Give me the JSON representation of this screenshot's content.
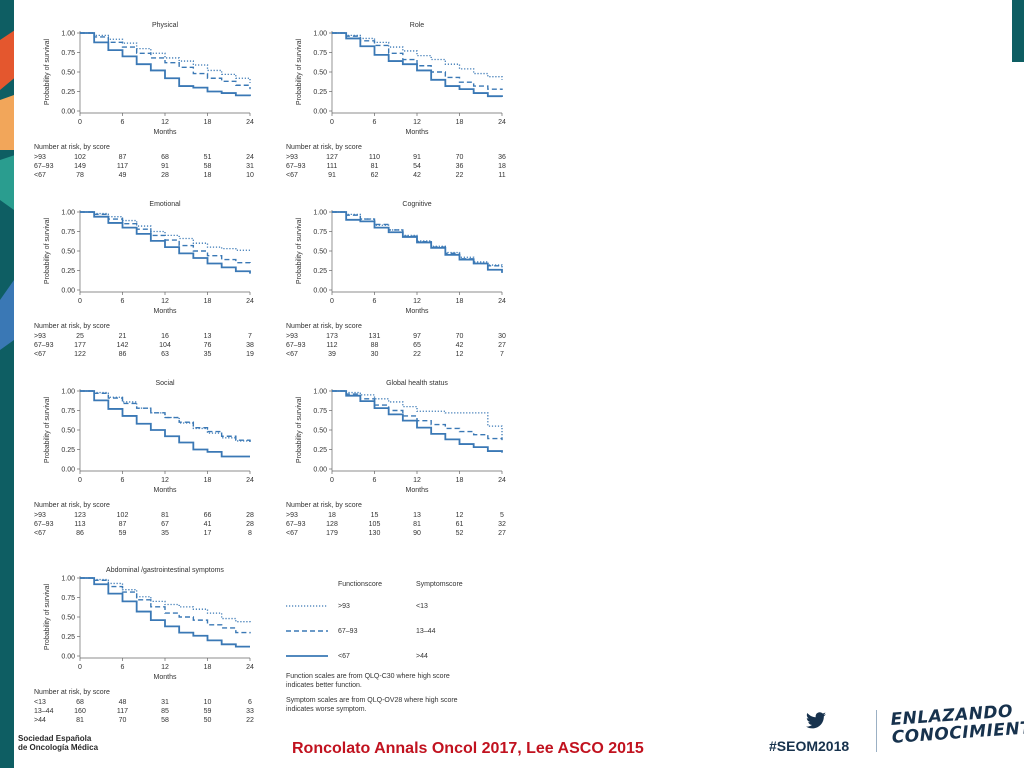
{
  "slide": {
    "citation": "Roncolato Annals Oncol 2017, Lee ASCO 2015",
    "hashtag": "#SEOM2018",
    "brand_line1": "ENLAZANDO",
    "brand_line2": "CONOCIMIENTO",
    "society_line1": "Sociedad Española",
    "society_line2": "de Oncología Médica",
    "colors": {
      "citation": "#c1121f",
      "brand": "#17324d",
      "curve": "#3a78b5",
      "accent_orange": "#e4572e",
      "accent_teal": "#2a9d8f"
    }
  },
  "common": {
    "xlabel": "Months",
    "ylabel": "Probability of survival",
    "risk_header": "Number at risk, by score",
    "x_ticks": [
      "0",
      "6",
      "12",
      "18",
      "24"
    ],
    "y_ticks": [
      "0.00",
      "0.25",
      "0.50",
      "0.75",
      "1.00"
    ]
  },
  "legend": {
    "col1_header": "Functionscore",
    "col2_header": "Symptomscore",
    "rows": [
      {
        "function": ">93",
        "symptom": "<13",
        "style": "dotted"
      },
      {
        "function": "67–93",
        "symptom": "13–44",
        "style": "dashed"
      },
      {
        "function": "<67",
        "symptom": ">44",
        "style": "solid"
      }
    ],
    "note1_line1": "Function scales are from QLQ-C30 where high score",
    "note1_line2": "indicates better function.",
    "note2_line1": "Symptom scales are from QLQ-OV28 where high score",
    "note2_line2": "indicates worse symptom."
  },
  "chart_data": [
    {
      "type": "line",
      "title": "Physical",
      "xlabel": "Months",
      "ylabel": "Probability of survival",
      "xlim": [
        0,
        24
      ],
      "ylim": [
        0,
        1
      ],
      "x": [
        0,
        2,
        4,
        6,
        8,
        10,
        12,
        14,
        16,
        18,
        20,
        22,
        24
      ],
      "series": [
        {
          "name": ">93",
          "values": [
            1.0,
            0.97,
            0.92,
            0.87,
            0.8,
            0.74,
            0.68,
            0.64,
            0.59,
            0.52,
            0.47,
            0.42,
            0.36
          ],
          "style": "dotted"
        },
        {
          "name": "67–93",
          "values": [
            1.0,
            0.95,
            0.88,
            0.82,
            0.74,
            0.68,
            0.62,
            0.56,
            0.48,
            0.42,
            0.38,
            0.33,
            0.28
          ],
          "style": "dashed"
        },
        {
          "name": "<67",
          "values": [
            1.0,
            0.88,
            0.78,
            0.7,
            0.6,
            0.52,
            0.42,
            0.32,
            0.3,
            0.25,
            0.23,
            0.2,
            0.19
          ],
          "style": "solid"
        }
      ],
      "risk": [
        {
          "label": ">93",
          "values": [
            "102",
            "87",
            "68",
            "51",
            "24"
          ]
        },
        {
          "label": "67–93",
          "values": [
            "149",
            "117",
            "91",
            "58",
            "31"
          ]
        },
        {
          "label": "<67",
          "values": [
            "78",
            "49",
            "28",
            "18",
            "10"
          ]
        }
      ]
    },
    {
      "type": "line",
      "title": "Role",
      "xlabel": "Months",
      "ylabel": "Probability of survival",
      "xlim": [
        0,
        24
      ],
      "ylim": [
        0,
        1
      ],
      "x": [
        0,
        2,
        4,
        6,
        8,
        10,
        12,
        14,
        16,
        18,
        20,
        22,
        24
      ],
      "series": [
        {
          "name": ">93",
          "values": [
            1.0,
            0.97,
            0.93,
            0.88,
            0.82,
            0.77,
            0.71,
            0.66,
            0.6,
            0.54,
            0.48,
            0.44,
            0.4
          ],
          "style": "dotted"
        },
        {
          "name": "67–93",
          "values": [
            1.0,
            0.96,
            0.9,
            0.84,
            0.74,
            0.66,
            0.58,
            0.5,
            0.43,
            0.37,
            0.32,
            0.28,
            0.27
          ],
          "style": "dashed"
        },
        {
          "name": "<67",
          "values": [
            1.0,
            0.93,
            0.83,
            0.72,
            0.64,
            0.6,
            0.52,
            0.4,
            0.32,
            0.28,
            0.23,
            0.19,
            0.18
          ],
          "style": "solid"
        }
      ],
      "risk": [
        {
          "label": ">93",
          "values": [
            "127",
            "110",
            "91",
            "70",
            "36"
          ]
        },
        {
          "label": "67–93",
          "values": [
            "111",
            "81",
            "54",
            "36",
            "18"
          ]
        },
        {
          "label": "<67",
          "values": [
            "91",
            "62",
            "42",
            "22",
            "11"
          ]
        }
      ]
    },
    {
      "type": "line",
      "title": "Emotional",
      "xlabel": "Months",
      "ylabel": "Probability of survival",
      "xlim": [
        0,
        24
      ],
      "ylim": [
        0,
        1
      ],
      "x": [
        0,
        2,
        4,
        6,
        8,
        10,
        12,
        14,
        16,
        18,
        20,
        22,
        24
      ],
      "series": [
        {
          "name": ">93",
          "values": [
            1.0,
            0.98,
            0.94,
            0.89,
            0.82,
            0.75,
            0.7,
            0.66,
            0.6,
            0.55,
            0.53,
            0.51,
            0.51
          ],
          "style": "dotted"
        },
        {
          "name": "67–93",
          "values": [
            1.0,
            0.97,
            0.91,
            0.85,
            0.78,
            0.7,
            0.64,
            0.57,
            0.5,
            0.44,
            0.39,
            0.35,
            0.32
          ],
          "style": "dashed"
        },
        {
          "name": "<67",
          "values": [
            1.0,
            0.94,
            0.86,
            0.8,
            0.72,
            0.63,
            0.55,
            0.47,
            0.41,
            0.34,
            0.29,
            0.24,
            0.21
          ],
          "style": "solid"
        }
      ],
      "risk": [
        {
          "label": ">93",
          "values": [
            "25",
            "21",
            "16",
            "13",
            "7"
          ]
        },
        {
          "label": "67–93",
          "values": [
            "177",
            "142",
            "104",
            "76",
            "38"
          ]
        },
        {
          "label": "<67",
          "values": [
            "122",
            "86",
            "63",
            "35",
            "19"
          ]
        }
      ]
    },
    {
      "type": "line",
      "title": "Cognitive",
      "xlabel": "Months",
      "ylabel": "Probability of survival",
      "xlim": [
        0,
        24
      ],
      "ylim": [
        0,
        1
      ],
      "x": [
        0,
        2,
        4,
        6,
        8,
        10,
        12,
        14,
        16,
        18,
        20,
        22,
        24
      ],
      "series": [
        {
          "name": ">93",
          "values": [
            1.0,
            0.97,
            0.91,
            0.83,
            0.77,
            0.7,
            0.63,
            0.56,
            0.48,
            0.42,
            0.36,
            0.32,
            0.3
          ],
          "style": "dotted"
        },
        {
          "name": "67–93",
          "values": [
            1.0,
            0.96,
            0.91,
            0.84,
            0.77,
            0.69,
            0.62,
            0.55,
            0.47,
            0.4,
            0.34,
            0.31,
            0.29
          ],
          "style": "dashed"
        },
        {
          "name": "<67",
          "values": [
            1.0,
            0.9,
            0.88,
            0.8,
            0.74,
            0.68,
            0.61,
            0.54,
            0.45,
            0.39,
            0.34,
            0.26,
            0.22
          ],
          "style": "solid"
        }
      ],
      "risk": [
        {
          "label": ">93",
          "values": [
            "173",
            "131",
            "97",
            "70",
            "30"
          ]
        },
        {
          "label": "67–93",
          "values": [
            "112",
            "88",
            "65",
            "42",
            "27"
          ]
        },
        {
          "label": "<67",
          "values": [
            "39",
            "30",
            "22",
            "12",
            "7"
          ]
        }
      ]
    },
    {
      "type": "line",
      "title": "Social",
      "xlabel": "Months",
      "ylabel": "Probability of survival",
      "xlim": [
        0,
        24
      ],
      "ylim": [
        0,
        1
      ],
      "x": [
        0,
        2,
        4,
        6,
        8,
        10,
        12,
        14,
        16,
        18,
        20,
        22,
        24
      ],
      "series": [
        {
          "name": ">93",
          "values": [
            1.0,
            0.98,
            0.92,
            0.86,
            0.78,
            0.72,
            0.66,
            0.59,
            0.52,
            0.46,
            0.4,
            0.36,
            0.35
          ],
          "style": "dotted"
        },
        {
          "name": "67–93",
          "values": [
            1.0,
            0.97,
            0.91,
            0.84,
            0.78,
            0.72,
            0.66,
            0.6,
            0.53,
            0.48,
            0.42,
            0.37,
            0.34
          ],
          "style": "dashed"
        },
        {
          "name": "<67",
          "values": [
            1.0,
            0.88,
            0.77,
            0.68,
            0.58,
            0.5,
            0.42,
            0.34,
            0.25,
            0.22,
            0.16,
            0.16,
            0.16
          ],
          "style": "solid"
        }
      ],
      "risk": [
        {
          "label": ">93",
          "values": [
            "123",
            "102",
            "81",
            "66",
            "28"
          ]
        },
        {
          "label": "67–93",
          "values": [
            "113",
            "87",
            "67",
            "41",
            "28"
          ]
        },
        {
          "label": "<67",
          "values": [
            "86",
            "59",
            "35",
            "17",
            "8"
          ]
        }
      ]
    },
    {
      "type": "line",
      "title": "Global health status",
      "xlabel": "Months",
      "ylabel": "Probability of survival",
      "xlim": [
        0,
        24
      ],
      "ylim": [
        0,
        1
      ],
      "x": [
        0,
        2,
        4,
        6,
        8,
        10,
        12,
        14,
        16,
        18,
        20,
        22,
        24
      ],
      "series": [
        {
          "name": ">93",
          "values": [
            1.0,
            0.98,
            0.95,
            0.9,
            0.86,
            0.8,
            0.74,
            0.74,
            0.72,
            0.72,
            0.72,
            0.55,
            0.4
          ],
          "style": "dotted"
        },
        {
          "name": "67–93",
          "values": [
            1.0,
            0.96,
            0.9,
            0.82,
            0.75,
            0.68,
            0.62,
            0.57,
            0.52,
            0.48,
            0.44,
            0.39,
            0.37
          ],
          "style": "dashed"
        },
        {
          "name": "<67",
          "values": [
            1.0,
            0.94,
            0.87,
            0.78,
            0.7,
            0.62,
            0.53,
            0.45,
            0.38,
            0.32,
            0.28,
            0.23,
            0.21
          ],
          "style": "solid"
        }
      ],
      "risk": [
        {
          "label": ">93",
          "values": [
            "18",
            "15",
            "13",
            "12",
            "5"
          ]
        },
        {
          "label": "67–93",
          "values": [
            "128",
            "105",
            "81",
            "61",
            "32"
          ]
        },
        {
          "label": "<67",
          "values": [
            "179",
            "130",
            "90",
            "52",
            "27"
          ]
        }
      ]
    },
    {
      "type": "line",
      "title": "Abdominal /gastrointestinal symptoms",
      "xlabel": "Months",
      "ylabel": "Probability of survival",
      "xlim": [
        0,
        24
      ],
      "ylim": [
        0,
        1
      ],
      "x": [
        0,
        2,
        4,
        6,
        8,
        10,
        12,
        14,
        16,
        18,
        20,
        22,
        24
      ],
      "series": [
        {
          "name": "<13",
          "values": [
            1.0,
            0.98,
            0.93,
            0.85,
            0.76,
            0.7,
            0.66,
            0.63,
            0.6,
            0.55,
            0.48,
            0.44,
            0.41
          ],
          "style": "dotted"
        },
        {
          "name": "13–44",
          "values": [
            1.0,
            0.97,
            0.89,
            0.82,
            0.72,
            0.63,
            0.55,
            0.5,
            0.46,
            0.4,
            0.36,
            0.3,
            0.29
          ],
          "style": "dashed"
        },
        {
          "name": ">44",
          "values": [
            1.0,
            0.92,
            0.8,
            0.7,
            0.57,
            0.46,
            0.38,
            0.3,
            0.26,
            0.2,
            0.15,
            0.12,
            0.12
          ],
          "style": "solid"
        }
      ],
      "risk": [
        {
          "label": "<13",
          "values": [
            "68",
            "48",
            "31",
            "10",
            "6"
          ]
        },
        {
          "label": "13–44",
          "values": [
            "160",
            "117",
            "85",
            "59",
            "33"
          ]
        },
        {
          "label": ">44",
          "values": [
            "81",
            "70",
            "58",
            "50",
            "22"
          ]
        }
      ]
    }
  ]
}
